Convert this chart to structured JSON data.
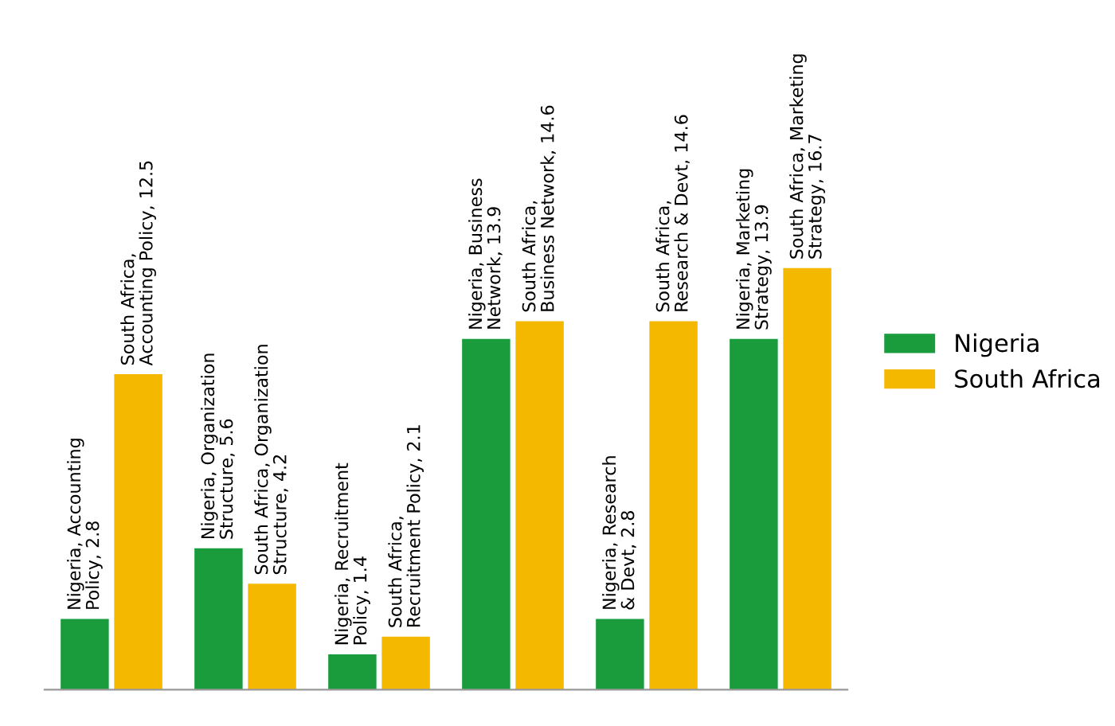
{
  "chart_data": {
    "type": "bar",
    "categories": [
      null,
      null,
      null,
      null,
      null,
      null
    ],
    "series": [
      {
        "name": "Nigeria",
        "color": "#1a9c3c",
        "values": [
          2.8,
          5.6,
          1.4,
          13.9,
          2.8,
          13.9
        ],
        "value_labels": [
          "Nigeria, Accounting Policy, 2.8",
          "Nigeria, Organization Structure, 5.6",
          "Nigeria, Recruitment Policy, 1.4",
          "Nigeria, Business Network, 13.9",
          "Nigeria, Research & Devt, 2.8",
          "Nigeria, Marketing Strategy, 13.9"
        ]
      },
      {
        "name": "South Africa",
        "color": "#f5b800",
        "values": [
          12.5,
          4.2,
          2.1,
          14.6,
          14.6,
          16.7
        ],
        "value_labels": [
          "South Africa, Accounting Policy, 12.5",
          "South Africa, Organization Structure, 4.2",
          "South Africa, Recruitment Policy, 2.1",
          "South Africa, Business Network, 14.6",
          "South Africa, Research & Devt, 14.6",
          "South Africa, Marketing Strategy, 16.7"
        ]
      }
    ],
    "legend": "right",
    "grid": false
  }
}
